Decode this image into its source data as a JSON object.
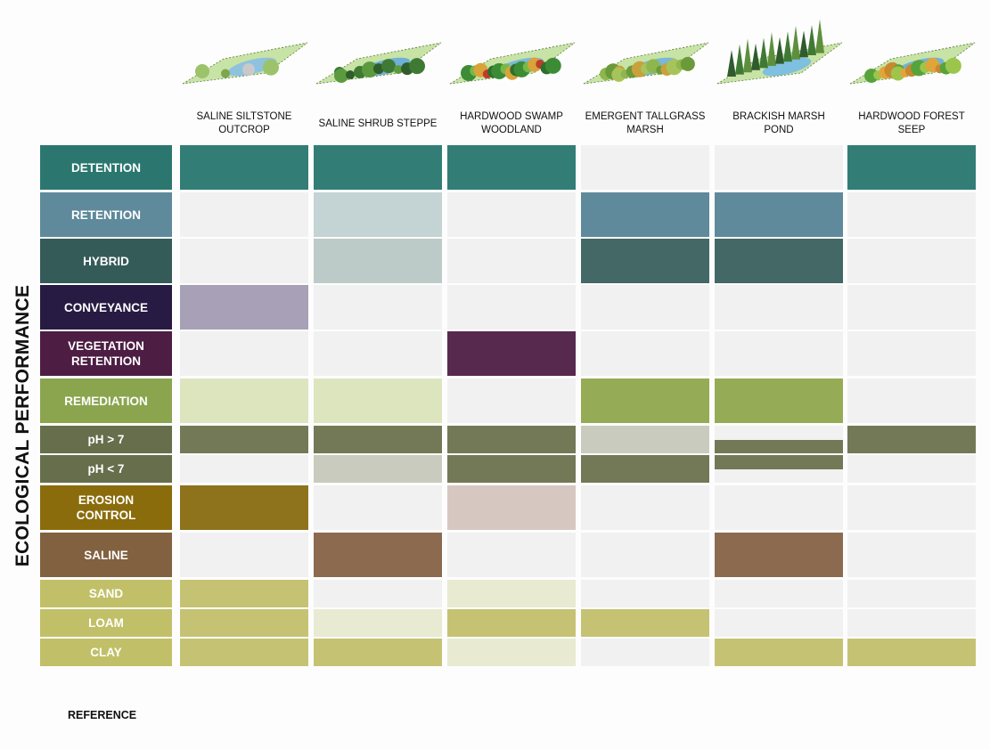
{
  "title": "ECOLOGICAL PERFORMANCE",
  "reference_label": "REFERENCE",
  "columns": [
    {
      "label": "SALINE SILTSTONE\nOUTCROP",
      "icon": "saline-siltstone-outcrop-illustration"
    },
    {
      "label": "SALINE SHRUB STEPPE",
      "icon": "saline-shrub-steppe-illustration"
    },
    {
      "label": "HARDWOOD SWAMP\nWOODLAND",
      "icon": "hardwood-swamp-woodland-illustration"
    },
    {
      "label": "EMERGENT TALLGRASS\nMARSH",
      "icon": "emergent-tallgrass-marsh-illustration"
    },
    {
      "label": "BRACKISH MARSH\nPOND",
      "icon": "brackish-marsh-pond-illustration"
    },
    {
      "label": "HARDWOOD FOREST\nSEEP",
      "icon": "hardwood-forest-seep-illustration"
    }
  ],
  "rows": [
    {
      "label": "DETENTION",
      "color": "#2b7770",
      "cells": [
        [
          "#327e76"
        ],
        [
          "#327e76"
        ],
        [
          "#327e76"
        ],
        [
          "#f1f1f1"
        ],
        [
          "#f1f1f1"
        ],
        [
          "#327e76"
        ]
      ]
    },
    {
      "label": "RETENTION",
      "color": "#5e8a9b",
      "cells": [
        [
          "#f1f1f1"
        ],
        [
          "#c4d3d3"
        ],
        [
          "#f1f1f1"
        ],
        [
          "#5e8a9b"
        ],
        [
          "#5e8a9b"
        ],
        [
          "#f1f1f1"
        ]
      ]
    },
    {
      "label": "HYBRID",
      "color": "#355b59",
      "cells": [
        [
          "#f1f1f1"
        ],
        [
          "#bccbc8"
        ],
        [
          "#f1f1f1"
        ],
        [
          "#436865"
        ],
        [
          "#436865"
        ],
        [
          "#f1f1f1"
        ]
      ]
    },
    {
      "label": "CONVEYANCE",
      "color": "#271a43",
      "cells": [
        [
          "#a7a0b6"
        ],
        [
          "#f1f1f1"
        ],
        [
          "#f1f1f1"
        ],
        [
          "#f1f1f1"
        ],
        [
          "#f1f1f1"
        ],
        [
          "#f1f1f1"
        ]
      ]
    },
    {
      "label": "VEGETATION\nRETENTION",
      "color": "#4d1d43",
      "cells": [
        [
          "#f1f1f1"
        ],
        [
          "#f1f1f1"
        ],
        [
          "#58294f"
        ],
        [
          "#f1f1f1"
        ],
        [
          "#f1f1f1"
        ],
        [
          "#f1f1f1"
        ]
      ]
    },
    {
      "label": "REMEDIATION",
      "color": "#8aa54e",
      "cells": [
        [
          "#dde5bf"
        ],
        [
          "#dde5bf"
        ],
        [
          "#f1f1f1"
        ],
        [
          "#96ab55"
        ],
        [
          "#96ab55"
        ],
        [
          "#f1f1f1"
        ]
      ]
    },
    {
      "label": "pH > 7",
      "color": "#666e4c",
      "cells": [
        [
          "#737957"
        ],
        [
          "#737957"
        ],
        [
          "#737957"
        ],
        [
          "#c9cbbe"
        ],
        [
          "#f1f1f1",
          "#737957"
        ],
        [
          "#737957"
        ]
      ]
    },
    {
      "label": "pH < 7",
      "color": "#666e4c",
      "cells": [
        [
          "#f1f1f1"
        ],
        [
          "#c9cbbe"
        ],
        [
          "#737957"
        ],
        [
          "#737957"
        ],
        [
          "#737957",
          "#f1f1f1"
        ],
        [
          "#f1f1f1"
        ]
      ]
    },
    {
      "label": "EROSION\nCONTROL",
      "color": "#8a6c0c",
      "cells": [
        [
          "#8e721c"
        ],
        [
          "#f1f1f1"
        ],
        [
          "#d6c8c0"
        ],
        [
          "#f1f1f1"
        ],
        [
          "#f1f1f1"
        ],
        [
          "#f1f1f1"
        ]
      ]
    },
    {
      "label": "SALINE",
      "color": "#81613f",
      "cells": [
        [
          "#f1f1f1"
        ],
        [
          "#8c6a50"
        ],
        [
          "#f1f1f1"
        ],
        [
          "#f1f1f1"
        ],
        [
          "#8c6a50"
        ],
        [
          "#f1f1f1"
        ]
      ]
    },
    {
      "label": "SAND",
      "color": "#c1c068",
      "cells": [
        [
          "#c5c373"
        ],
        [
          "#f1f1f1"
        ],
        [
          "#e8ebd2"
        ],
        [
          "#f1f1f1"
        ],
        [
          "#f1f1f1"
        ],
        [
          "#f1f1f1"
        ]
      ]
    },
    {
      "label": "LOAM",
      "color": "#c1c068",
      "cells": [
        [
          "#c5c373"
        ],
        [
          "#e8ebd2"
        ],
        [
          "#c5c373"
        ],
        [
          "#c5c373"
        ],
        [
          "#f1f1f1"
        ],
        [
          "#f1f1f1"
        ]
      ]
    },
    {
      "label": "CLAY",
      "color": "#c1c068",
      "cells": [
        [
          "#c5c373"
        ],
        [
          "#c5c373"
        ],
        [
          "#e8ebd2"
        ],
        [
          "#f1f1f1"
        ],
        [
          "#c5c373"
        ],
        [
          "#c5c373"
        ]
      ]
    }
  ]
}
